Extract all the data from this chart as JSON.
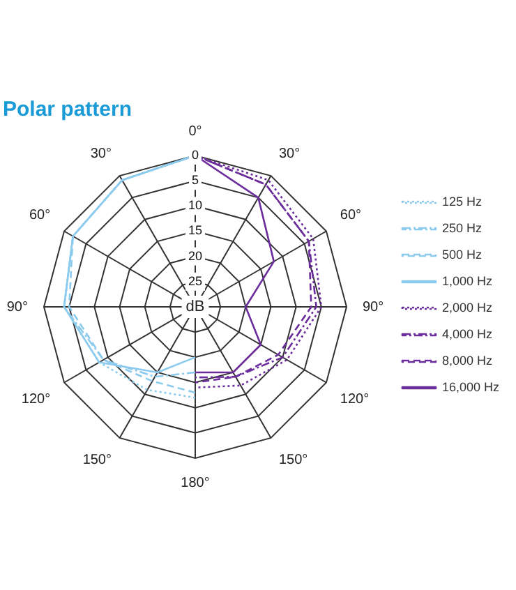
{
  "chart_data": {
    "type": "radar",
    "title": "Polar pattern",
    "categories": [
      "0°",
      "30°",
      "60°",
      "90°",
      "120°",
      "150°",
      "180°",
      "150°",
      "120°",
      "90°",
      "60°",
      "30°"
    ],
    "ylabel": "dB",
    "ylim": [
      -30,
      0
    ],
    "yticks": [
      {
        "value": 0,
        "label": "0"
      },
      {
        "value": -5,
        "label": "5"
      },
      {
        "value": -10,
        "label": "10"
      },
      {
        "value": -15,
        "label": "15"
      },
      {
        "value": -20,
        "label": "20"
      },
      {
        "value": -25,
        "label": "25"
      }
    ],
    "grid": true,
    "legend": "right",
    "series": [
      {
        "name": "125 Hz",
        "color": "#8ccbee",
        "line_style": "dotted",
        "values": [
          0,
          null,
          null,
          null,
          null,
          null,
          -12,
          -11,
          -8,
          -4,
          -2,
          -1
        ]
      },
      {
        "name": "250 Hz",
        "color": "#8ccbee",
        "line_style": "dashdot",
        "values": [
          0,
          null,
          null,
          null,
          null,
          null,
          -17,
          -14,
          -9,
          -4,
          -2,
          -1
        ]
      },
      {
        "name": "500 Hz",
        "color": "#8ccbee",
        "line_style": "dashed",
        "values": [
          0,
          null,
          null,
          null,
          null,
          null,
          -13,
          -13,
          -9,
          -5,
          -2,
          -1
        ]
      },
      {
        "name": "1,000 Hz",
        "color": "#8ccbee",
        "line_style": "solid",
        "values": [
          0,
          null,
          null,
          null,
          null,
          null,
          -20,
          -15,
          -8,
          -4,
          -2,
          -1
        ]
      },
      {
        "name": "2,000 Hz",
        "color": "#6b2c9c",
        "line_style": "dotted",
        "values": [
          0,
          -1,
          -3,
          -5,
          -9,
          -12,
          -14,
          null,
          null,
          null,
          null,
          null
        ]
      },
      {
        "name": "4,000 Hz",
        "color": "#6b2c9c",
        "line_style": "dashdot",
        "values": [
          0,
          -2,
          -4,
          -6,
          -10,
          -14,
          -16,
          null,
          null,
          null,
          null,
          null
        ]
      },
      {
        "name": "8,000 Hz",
        "color": "#6b2c9c",
        "line_style": "dashed",
        "values": [
          0,
          -2,
          -4,
          -7,
          -11,
          -14,
          -15,
          null,
          null,
          null,
          null,
          null
        ]
      },
      {
        "name": "16,000 Hz",
        "color": "#6b2c9c",
        "line_style": "solid",
        "values": [
          0,
          -5,
          -12,
          -20,
          -15,
          -15,
          -17,
          null,
          null,
          null,
          null,
          null
        ]
      }
    ]
  }
}
